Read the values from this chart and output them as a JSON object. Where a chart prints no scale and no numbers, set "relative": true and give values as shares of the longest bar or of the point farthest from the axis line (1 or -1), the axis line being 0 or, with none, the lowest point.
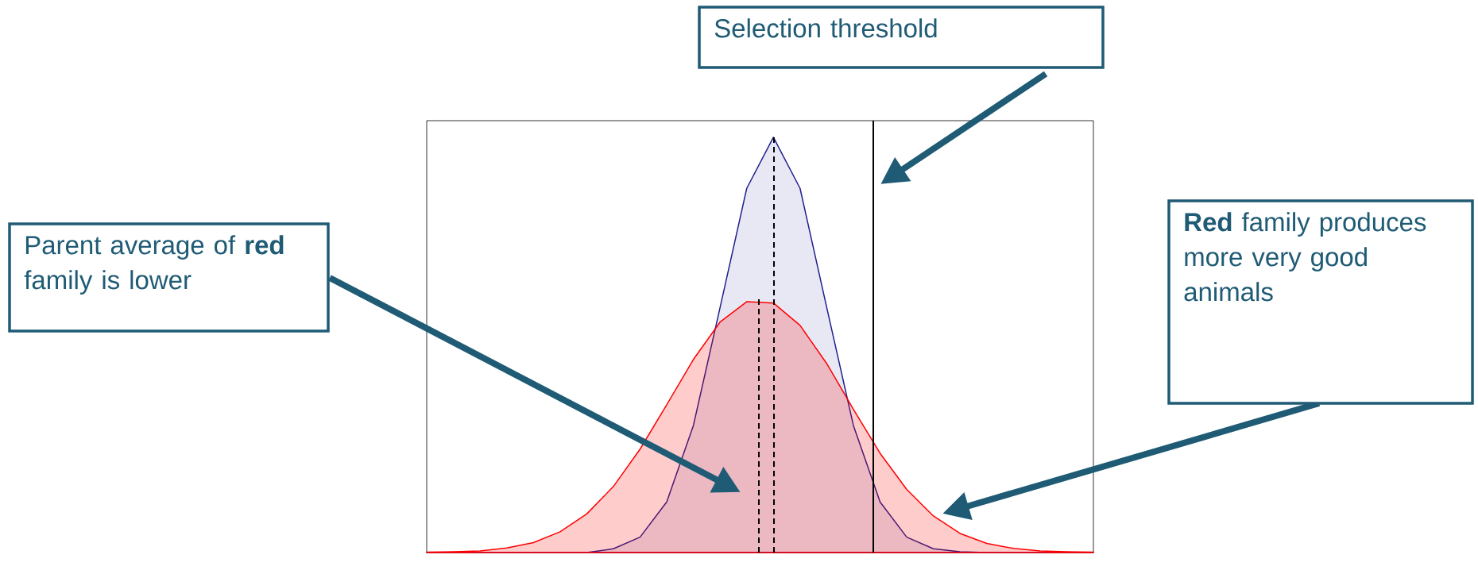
{
  "chart_data": {
    "type": "area",
    "relative": true,
    "categories": [
      null,
      null,
      null,
      null,
      null,
      null,
      null,
      null,
      null,
      null,
      null,
      null,
      null,
      null,
      null,
      null,
      null,
      null,
      null,
      null,
      null,
      null,
      null,
      null,
      null,
      null
    ],
    "series": [
      {
        "color": "#1f1f8f",
        "values": [
          0,
          0,
          0,
          0,
          0,
          0,
          0,
          0.009,
          0.037,
          0.122,
          0.306,
          0.59,
          0.877,
          1.0,
          0.877,
          0.59,
          0.306,
          0.122,
          0.037,
          0.009,
          0.002,
          0,
          0,
          0,
          0,
          0
        ]
      },
      {
        "color": "#ff0000",
        "values": [
          0.001,
          0.002,
          0.004,
          0.011,
          0.024,
          0.05,
          0.093,
          0.159,
          0.249,
          0.356,
          0.465,
          0.555,
          0.604,
          0.601,
          0.547,
          0.455,
          0.345,
          0.239,
          0.152,
          0.088,
          0.046,
          0.022,
          0.01,
          0.004,
          0.002,
          0.001
        ]
      }
    ],
    "annotations": [
      "Selection threshold",
      "Parent average of **red** family is lower",
      "**Red** family produces more very good animals"
    ]
  }
}
